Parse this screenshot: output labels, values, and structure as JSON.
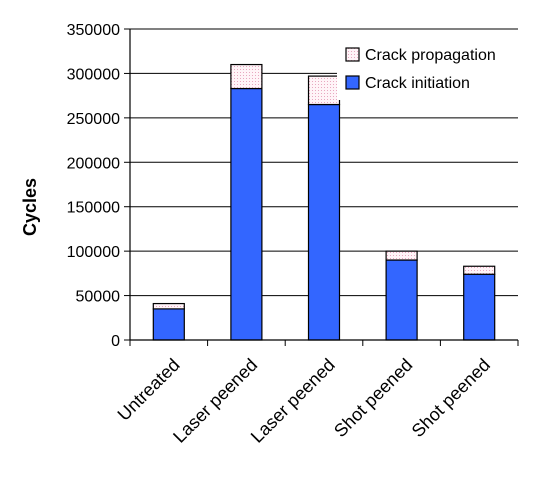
{
  "chart_data": {
    "type": "bar",
    "stacked": true,
    "categories": [
      "Untreated",
      "Laser peened",
      "Laser peened",
      "Shot peened",
      "Shot peened"
    ],
    "series": [
      {
        "name": "Crack initiation",
        "values": [
          35000,
          283000,
          265000,
          90000,
          74000
        ],
        "color": "#3366ff"
      },
      {
        "name": "Crack propagation",
        "values": [
          6000,
          27000,
          32000,
          10000,
          9000
        ],
        "color": "#fff0f5"
      }
    ],
    "title": "",
    "xlabel": "",
    "ylabel": "Cycles",
    "ylim": [
      0,
      350000
    ],
    "yticks": [
      0,
      50000,
      100000,
      150000,
      200000,
      250000,
      300000,
      350000
    ],
    "grid": true,
    "legend_position": "top-right"
  }
}
